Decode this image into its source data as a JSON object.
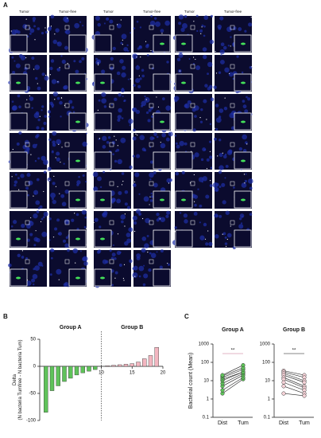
{
  "panel_a": {
    "label": "A",
    "column_groups": [
      {
        "headers": [
          "Tumor",
          "Tumor-free"
        ],
        "rows": 7
      },
      {
        "headers": [
          "Tumor",
          "Tumor-free"
        ],
        "rows": 7
      },
      {
        "headers": [
          "Tumor",
          "Tumor-free"
        ],
        "rows": 6
      }
    ]
  },
  "chart_data": [
    {
      "type": "bar",
      "panel_label": "B",
      "y_label": "Delta\n(N bacteria Tumfree - N bacteria Tum)",
      "series": [
        {
          "name": "Group A",
          "color": "#5fc25a",
          "x": [
            1,
            2,
            3,
            4,
            5,
            6,
            7,
            8,
            9
          ],
          "values": [
            -85,
            -45,
            -36,
            -28,
            -22,
            -16,
            -12,
            -9,
            -6
          ]
        },
        {
          "name": "Group B",
          "color": "#f3b6c0",
          "x": [
            11,
            12,
            13,
            14,
            15,
            16,
            17,
            18,
            19
          ],
          "values": [
            1,
            2,
            3,
            4,
            5,
            8,
            14,
            20,
            35
          ]
        }
      ],
      "divider_x": 10,
      "xlim": [
        0,
        20
      ],
      "xticks": [
        10,
        15,
        20
      ],
      "ylim": [
        -100,
        50
      ],
      "yticks": [
        50,
        0,
        -50,
        -100
      ]
    },
    {
      "type": "paired",
      "panel_label": "C",
      "title": "Group A",
      "y_label": "Bacterial count (Mean)",
      "categories": [
        "Dist",
        "Tum"
      ],
      "color": "#5fc25a",
      "line_color": "#222222",
      "values": [
        [
          2,
          12
        ],
        [
          3,
          15
        ],
        [
          5,
          20
        ],
        [
          7,
          25
        ],
        [
          10,
          30
        ],
        [
          12,
          30
        ],
        [
          15,
          40
        ],
        [
          18,
          50
        ],
        [
          20,
          70
        ]
      ],
      "significance": "**",
      "log_scale": true,
      "ylim": [
        0.1,
        1000
      ],
      "yticks": [
        0.1,
        1,
        10,
        100,
        1000
      ]
    },
    {
      "type": "paired",
      "title": "Group B",
      "categories": [
        "Dist",
        "Tum"
      ],
      "color": "#f6d3d8",
      "line_color": "#222222",
      "values": [
        [
          35,
          20
        ],
        [
          30,
          15
        ],
        [
          25,
          10
        ],
        [
          20,
          8
        ],
        [
          15,
          5
        ],
        [
          12,
          4
        ],
        [
          8,
          3
        ],
        [
          5,
          2
        ],
        [
          2,
          1.5
        ]
      ],
      "significance": "**",
      "log_scale": true,
      "ylim": [
        0.1,
        1000
      ],
      "yticks": [
        0.1,
        1,
        10,
        100,
        1000
      ]
    }
  ]
}
